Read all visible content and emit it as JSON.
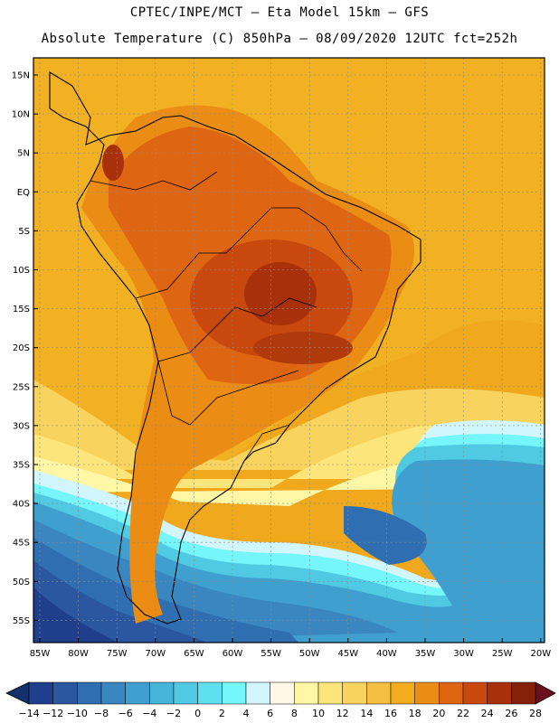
{
  "header": {
    "line1": "CPTEC/INPE/MCT —  Eta Model 15km — GFS",
    "line2": "Absolute Temperature (C) 850hPa — 08/09/2020 12UTC fct=252h"
  },
  "map": {
    "lat_labels": [
      "15N",
      "10N",
      "5N",
      "EQ",
      "5S",
      "10S",
      "15S",
      "20S",
      "25S",
      "30S",
      "35S",
      "40S",
      "45S",
      "50S",
      "55S"
    ],
    "lon_labels": [
      "85W",
      "80W",
      "75W",
      "70W",
      "65W",
      "60W",
      "55W",
      "50W",
      "45W",
      "40W",
      "35W",
      "30W",
      "25W",
      "20W"
    ],
    "ocean_background": "#f0a81c"
  },
  "colorbar": {
    "labels": [
      "-14",
      "-12",
      "-10",
      "-8",
      "-6",
      "-4",
      "-2",
      "0",
      "2",
      "4",
      "6",
      "8",
      "10",
      "12",
      "14",
      "16",
      "18",
      "20",
      "22",
      "24",
      "26",
      "28"
    ],
    "colors": [
      "#1f3f8c",
      "#2a57a0",
      "#2f6eb1",
      "#3a86c0",
      "#3fa0cf",
      "#45b6da",
      "#50cae3",
      "#5fe0ee",
      "#74f6fb",
      "#d1f6fb",
      "#fff8e6",
      "#fff6a6",
      "#fce57a",
      "#f8d45e",
      "#f5c041",
      "#f2ac1e",
      "#eb8c14",
      "#de6612",
      "#c8480e",
      "#a8300a",
      "#852108"
    ],
    "low_color": "#15306c",
    "high_color": "#6c0f1c"
  }
}
